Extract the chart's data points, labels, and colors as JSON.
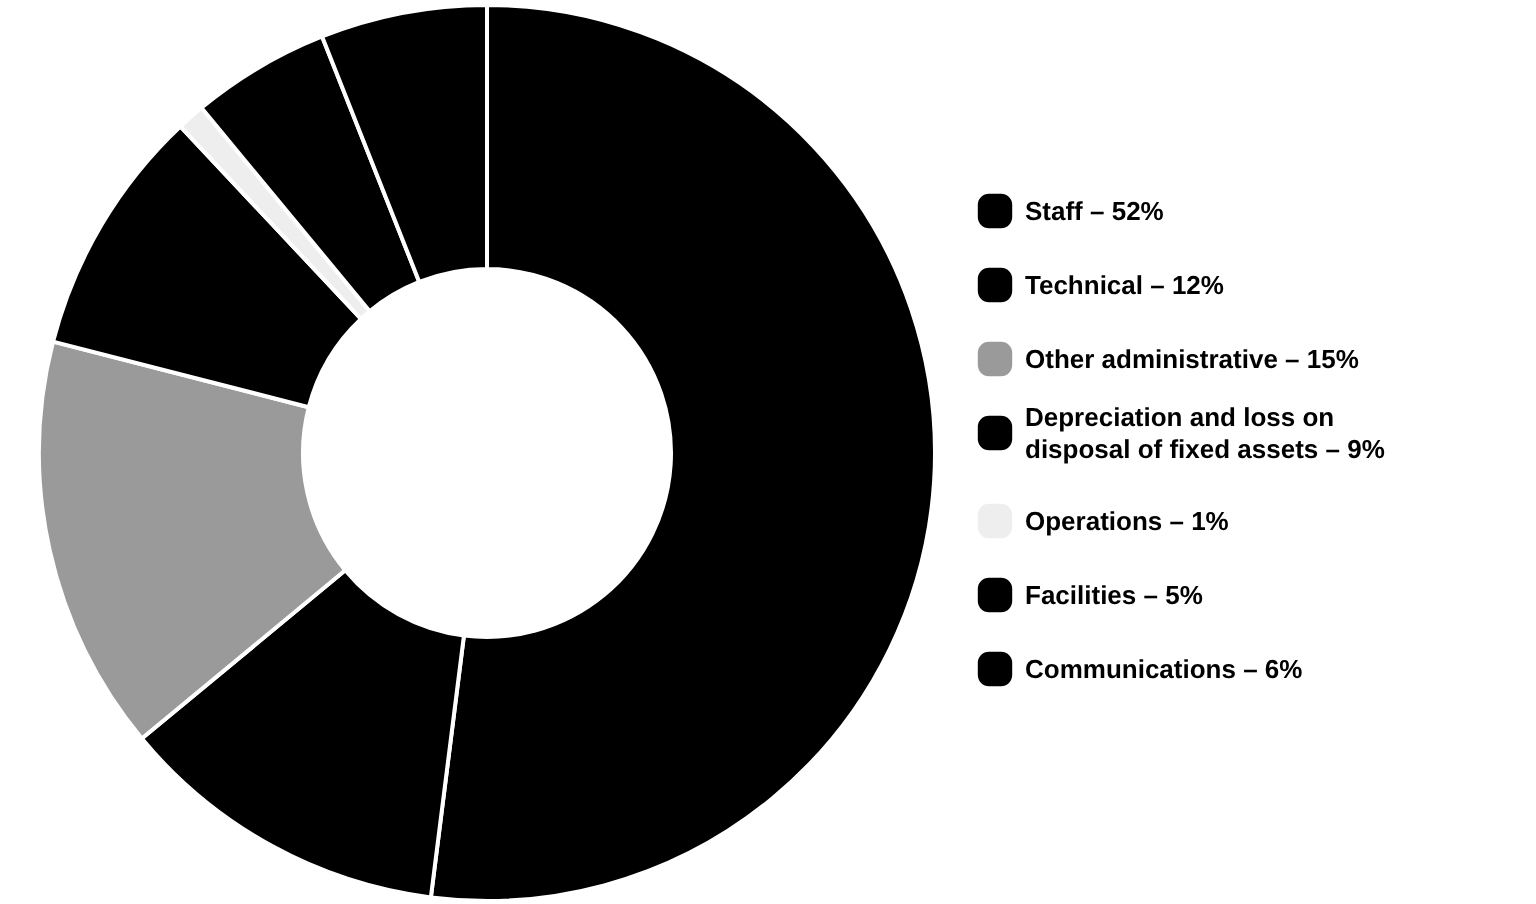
{
  "chart_data": {
    "type": "donut",
    "categories": [
      "Staff – 52%",
      "Technical – 12%",
      "Other administrative – 15%",
      "Depreciation and loss on disposal of fixed assets – 9%",
      "Operations – 1%",
      "Facilities – 5%",
      "Communications – 6%"
    ],
    "values": [
      52,
      12,
      15,
      9,
      1,
      5,
      6
    ],
    "colors": [
      "#000000",
      "#000000",
      "#9a9a9a",
      "#000000",
      "#eeeeee",
      "#000000",
      "#000000"
    ],
    "legend": "right"
  }
}
